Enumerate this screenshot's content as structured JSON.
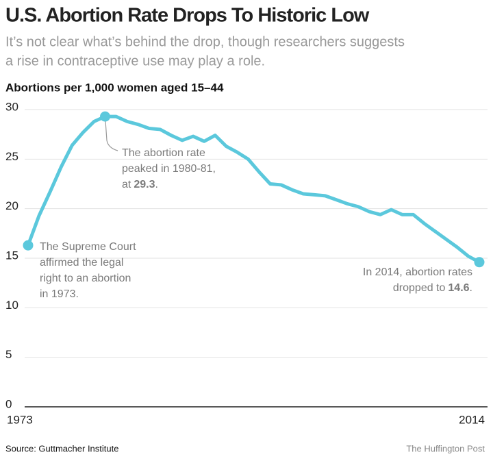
{
  "chart_data": {
    "type": "line",
    "title": "U.S. Abortion Rate Drops To Historic Low",
    "subtitle": [
      "It’s not clear what’s behind the drop, though researchers suggests",
      "a rise in contraceptive use may play a role."
    ],
    "y_label": "Abortions per 1,000 women aged 15–44",
    "x": [
      1973,
      1974,
      1975,
      1976,
      1977,
      1978,
      1979,
      1980,
      1981,
      1982,
      1983,
      1984,
      1985,
      1986,
      1987,
      1988,
      1989,
      1990,
      1991,
      1992,
      1993,
      1994,
      1995,
      1996,
      1997,
      1998,
      1999,
      2000,
      2001,
      2002,
      2003,
      2004,
      2005,
      2006,
      2007,
      2008,
      2009,
      2010,
      2011,
      2012,
      2013,
      2014
    ],
    "series": [
      {
        "name": "Abortion rate",
        "color": "#5bc8dc",
        "values": [
          16.3,
          19.3,
          21.7,
          24.2,
          26.4,
          27.7,
          28.8,
          29.3,
          29.3,
          28.8,
          28.5,
          28.1,
          28.0,
          27.4,
          26.9,
          27.3,
          26.8,
          27.4,
          26.3,
          25.7,
          25.0,
          23.7,
          22.5,
          22.4,
          21.9,
          21.5,
          21.4,
          21.3,
          20.9,
          20.5,
          20.2,
          19.7,
          19.4,
          19.9,
          19.4,
          19.4,
          18.5,
          17.7,
          16.9,
          16.1,
          15.2,
          14.6
        ]
      }
    ],
    "highlight_points": [
      1973,
      1980,
      2014
    ],
    "xlim": [
      1973,
      2014
    ],
    "xticks": [
      1973,
      2014
    ],
    "ylim": [
      0,
      30
    ],
    "yticks": [
      0,
      5,
      10,
      15,
      20,
      25,
      30
    ],
    "grid": true,
    "annotations": [
      {
        "lines": [
          [
            "The abortion rate"
          ],
          [
            "peaked in 1980-81,"
          ],
          [
            "at",
            "29.3",
            "."
          ]
        ]
      },
      {
        "lines": [
          [
            "The Supreme Court"
          ],
          [
            "affirmed the legal"
          ],
          [
            "right to an abortion"
          ],
          [
            "in 1973."
          ]
        ]
      },
      {
        "lines": [
          [
            "In 2014, abortion rates"
          ],
          [
            "dropped to",
            "14.6",
            "."
          ]
        ]
      }
    ],
    "source": "Source: Guttmacher Institute",
    "credit": "The Huffington Post"
  }
}
